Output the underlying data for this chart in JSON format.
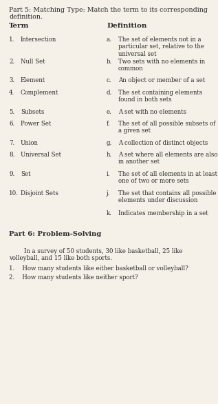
{
  "bg_color": "#f5f0e8",
  "text_color": "#2b2b2b",
  "title_line1": "Part 5: Matching Type: Match the term to its corresponding",
  "title_line2": "definition.",
  "term_header": "Term",
  "def_header": "Definition",
  "terms": [
    {
      "num": "1.",
      "name": "Intersection"
    },
    {
      "num": "2.",
      "name": "Null Set"
    },
    {
      "num": "3.",
      "name": "Element"
    },
    {
      "num": "4.",
      "name": "Complement"
    },
    {
      "num": "5.",
      "name": "Subsets"
    },
    {
      "num": "6.",
      "name": "Power Set"
    },
    {
      "num": "7.",
      "name": "Union"
    },
    {
      "num": "8.",
      "name": "Universal Set"
    },
    {
      "num": "9.",
      "name": "Set"
    },
    {
      "num": "10.",
      "name": "Disjoint Sets"
    }
  ],
  "definitions": [
    {
      "letter": "a.",
      "text": "The set of elements not in a\nparticular set, relative to the\nuniversal set"
    },
    {
      "letter": "b.",
      "text": "Two sets with no elements in\ncommon"
    },
    {
      "letter": "c.",
      "text": "An object or member of a set"
    },
    {
      "letter": "d.",
      "text": "The set containing elements\nfound in both sets"
    },
    {
      "letter": "e.",
      "text": "A set with no elements"
    },
    {
      "letter": "f.",
      "text": "The set of all possible subsets of\na given set"
    },
    {
      "letter": "g.",
      "text": "A collection of distinct objects"
    },
    {
      "letter": "h.",
      "text": "A set where all elements are also\nin another set"
    },
    {
      "letter": "i.",
      "text": "The set of all elements in at least\none of two or more sets"
    },
    {
      "letter": "j.",
      "text": "The set that contains all possible\nelements under discussion"
    },
    {
      "letter": "k.",
      "text": "Indicates membership in a set"
    }
  ],
  "part6_title": "Part 6: Problem-Solving",
  "part6_intro_indent": "        In a survey of 50 students, 30 like basketball, 25 like",
  "part6_intro_line2": "volleyball, and 15 like both sports.",
  "part6_q1": "1.    How many students like either basketball or volleyball?",
  "part6_q2": "2.    How many students like neither sport?",
  "title_fs": 6.8,
  "header_fs": 7.5,
  "body_fs": 6.2,
  "part6_title_fs": 7.2,
  "part6_body_fs": 6.2
}
